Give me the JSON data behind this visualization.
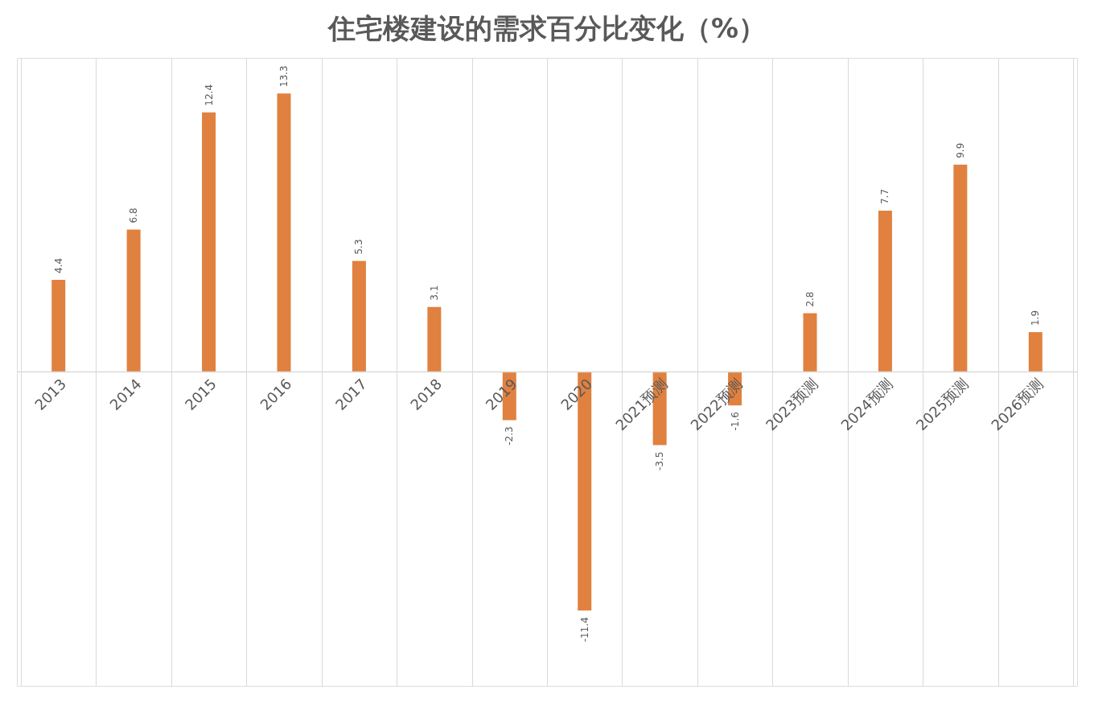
{
  "chart_data": {
    "type": "bar",
    "title": "住宅楼建设的需求百分比变化（%）",
    "categories": [
      "2013",
      "2014",
      "2015",
      "2016",
      "2017",
      "2018",
      "2019",
      "2020",
      "2021预测",
      "2022预测",
      "2023预测",
      "2024预测",
      "2025预测",
      "2026预测"
    ],
    "values": [
      4.4,
      6.8,
      12.4,
      13.3,
      5.3,
      3.1,
      -2.3,
      -11.4,
      -3.5,
      -1.6,
      2.8,
      7.7,
      9.9,
      1.9
    ],
    "color": "#e0813f",
    "ylim": [
      -15,
      15
    ],
    "data_labels": true,
    "grid": "x",
    "tick_labels": "x"
  }
}
